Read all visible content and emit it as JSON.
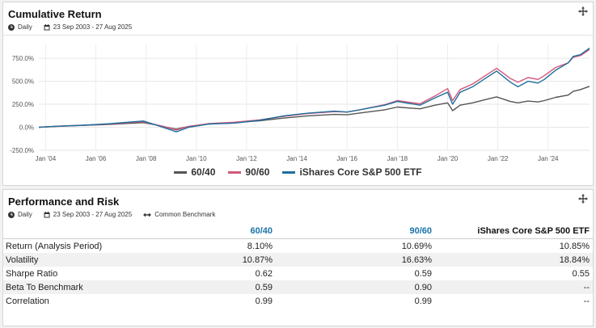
{
  "chart_panel": {
    "title": "Cumulative Return",
    "frequency": "Daily",
    "date_range": "23 Sep 2003 - 27 Aug 2025",
    "icons": {
      "move": "move-icon",
      "frequency": "clock-icon",
      "date": "calendar-icon"
    }
  },
  "perf_panel": {
    "title": "Performance and Risk",
    "frequency": "Daily",
    "date_range": "23 Sep 2003 - 27 Aug 2025",
    "benchmark": "Common Benchmark",
    "icons": {
      "move": "move-icon",
      "frequency": "clock-icon",
      "date": "calendar-icon",
      "benchmark": "arrows-horizontal-icon"
    },
    "columns": [
      "60/40",
      "90/60",
      "iShares Core S&P 500 ETF"
    ],
    "rows": [
      {
        "label": "Return (Analysis Period)",
        "values": [
          "8.10%",
          "10.69%",
          "10.85%"
        ]
      },
      {
        "label": "Volatility",
        "values": [
          "10.87%",
          "16.63%",
          "18.84%"
        ]
      },
      {
        "label": "Sharpe Ratio",
        "values": [
          "0.62",
          "0.59",
          "0.55"
        ]
      },
      {
        "label": "Beta To Benchmark",
        "values": [
          "0.59",
          "0.90",
          "--"
        ]
      },
      {
        "label": "Correlation",
        "values": [
          "0.99",
          "0.99",
          "--"
        ]
      }
    ]
  },
  "chart_data": {
    "type": "line",
    "title": "",
    "xlabel": "",
    "ylabel": "",
    "x_ticks": [
      "Jan '04",
      "Jan '06",
      "Jan '08",
      "Jan '10",
      "Jan '12",
      "Jan '14",
      "Jan '16",
      "Jan '18",
      "Jan '20",
      "Jan '22",
      "Jan '24"
    ],
    "y_ticks": [
      "-250.0%",
      "0.0%",
      "250.0%",
      "500.0%",
      "750.0%"
    ],
    "xlim": [
      2003.73,
      2025.65
    ],
    "ylim": [
      -250,
      900
    ],
    "grid": true,
    "legend_position": "bottom",
    "series": [
      {
        "name": "60/40",
        "color": "#555555",
        "x": [
          2003.73,
          2004.5,
          2005.5,
          2006.5,
          2007.5,
          2007.9,
          2008.5,
          2009.0,
          2009.2,
          2009.7,
          2010.5,
          2011.5,
          2012.5,
          2013.5,
          2014.5,
          2015.5,
          2016.0,
          2016.5,
          2017.5,
          2018.0,
          2018.9,
          2019.5,
          2020.0,
          2020.2,
          2020.5,
          2021.0,
          2021.5,
          2021.95,
          2022.5,
          2022.8,
          2023.2,
          2023.6,
          2023.85,
          2024.3,
          2024.8,
          2025.0,
          2025.3,
          2025.65
        ],
        "y": [
          0,
          10,
          20,
          30,
          45,
          50,
          20,
          -10,
          -20,
          10,
          35,
          50,
          70,
          100,
          125,
          140,
          135,
          155,
          190,
          220,
          200,
          240,
          265,
          180,
          240,
          265,
          300,
          330,
          280,
          265,
          285,
          275,
          290,
          325,
          350,
          390,
          410,
          445
        ]
      },
      {
        "name": "90/60",
        "color": "#d4577a",
        "x": [
          2003.73,
          2004.5,
          2005.5,
          2006.5,
          2007.5,
          2007.9,
          2008.5,
          2009.0,
          2009.2,
          2009.7,
          2010.5,
          2011.5,
          2012.5,
          2013.5,
          2014.5,
          2015.5,
          2016.0,
          2016.5,
          2017.5,
          2018.0,
          2018.9,
          2019.5,
          2020.0,
          2020.2,
          2020.5,
          2021.0,
          2021.5,
          2021.95,
          2022.5,
          2022.8,
          2023.2,
          2023.6,
          2023.85,
          2024.3,
          2024.8,
          2025.0,
          2025.3,
          2025.65
        ],
        "y": [
          0,
          12,
          22,
          35,
          55,
          60,
          20,
          -15,
          -30,
          10,
          40,
          55,
          80,
          120,
          150,
          170,
          165,
          190,
          245,
          290,
          255,
          340,
          420,
          290,
          410,
          470,
          560,
          640,
          530,
          490,
          540,
          520,
          560,
          650,
          700,
          760,
          780,
          845
        ]
      },
      {
        "name": "iShares Core S&P 500 ETF",
        "color": "#1f6f9e",
        "x": [
          2003.73,
          2004.5,
          2005.5,
          2006.5,
          2007.5,
          2007.9,
          2008.5,
          2009.0,
          2009.2,
          2009.7,
          2010.5,
          2011.5,
          2012.5,
          2013.5,
          2014.5,
          2015.5,
          2016.0,
          2016.5,
          2017.5,
          2018.0,
          2018.9,
          2019.5,
          2020.0,
          2020.2,
          2020.5,
          2021.0,
          2021.5,
          2021.95,
          2022.5,
          2022.8,
          2023.2,
          2023.6,
          2023.85,
          2024.3,
          2024.8,
          2025.0,
          2025.3,
          2025.65
        ],
        "y": [
          0,
          12,
          22,
          38,
          60,
          68,
          15,
          -30,
          -50,
          0,
          35,
          45,
          75,
          125,
          155,
          175,
          165,
          190,
          240,
          280,
          240,
          320,
          380,
          250,
          380,
          440,
          530,
          610,
          490,
          440,
          500,
          480,
          520,
          620,
          700,
          770,
          790,
          860
        ]
      }
    ]
  }
}
